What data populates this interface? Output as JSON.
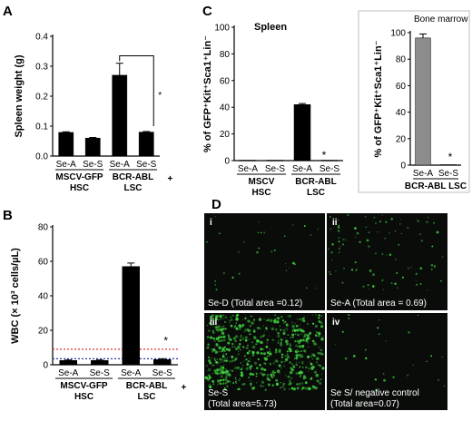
{
  "chart_data": [
    {
      "panel": "A",
      "type": "bar",
      "ylabel": "Spleen weight (g)",
      "ylim": [
        0,
        0.4
      ],
      "yticks": [
        "0.0",
        "0.1",
        "0.2",
        "0.3",
        "0.4"
      ],
      "categories": [
        "Se-A",
        "Se-S",
        "Se-A",
        "Se-S"
      ],
      "values": [
        0.079,
        0.06,
        0.27,
        0.08
      ],
      "errors": [
        0.002,
        0.002,
        0.04,
        0.002
      ],
      "groups": [
        {
          "line1": "MSCV-GFP",
          "line2": "HSC"
        },
        {
          "line1": "BCR-ABL",
          "sup": "+",
          "line2": "LSC"
        }
      ],
      "annotation": "*",
      "bar_color": "#000000"
    },
    {
      "panel": "B",
      "type": "bar",
      "ylabel": "WBC (× 10³ cells/µL)",
      "ylim": [
        0,
        80
      ],
      "yticks": [
        "0",
        "20",
        "40",
        "60",
        "80"
      ],
      "categories": [
        "Se-A",
        "Se-S",
        "Se-A",
        "Se-S"
      ],
      "values": [
        2.5,
        2.5,
        57,
        3
      ],
      "errors": [
        0.3,
        0.3,
        2,
        0.5
      ],
      "reference_lines": [
        {
          "value": 9,
          "color": "#e03030"
        },
        {
          "value": 3.5,
          "color": "#2a3aa0"
        }
      ],
      "groups": [
        {
          "line1": "MSCV-GFP",
          "line2": "HSC"
        },
        {
          "line1": "BCR-ABL",
          "sup": "+",
          "line2": "LSC"
        }
      ],
      "annotation": "*",
      "bar_color": "#000000"
    },
    {
      "panel": "C",
      "type": "bar",
      "title": "Spleen",
      "ylabel": "% of GFP⁺Kit⁺Sca1⁺Lin⁻",
      "ylim": [
        0,
        100
      ],
      "yticks": [
        "0",
        "20",
        "40",
        "60",
        "80",
        "100"
      ],
      "categories": [
        "Se-A",
        "Se-S",
        "Se-A",
        "Se-S"
      ],
      "values": [
        0.3,
        0.3,
        42,
        0.3
      ],
      "errors": [
        0,
        0,
        0.8,
        0
      ],
      "groups": [
        {
          "line1": "MSCV",
          "line2": "HSC"
        },
        {
          "line1": "BCR-ABL",
          "line2": "LSC"
        }
      ],
      "annotation": "*",
      "bar_color": "#000000"
    },
    {
      "panel": "C-right",
      "type": "bar",
      "title": "Bone marrow",
      "ylabel": "% of GFP⁺Kit⁺Sca1⁺Lin⁻",
      "ylim": [
        0,
        100
      ],
      "yticks": [
        "0",
        "20",
        "40",
        "60",
        "80",
        "100"
      ],
      "categories": [
        "Se-A",
        "Se-S"
      ],
      "values": [
        96,
        0.5
      ],
      "errors": [
        3,
        0
      ],
      "groups": [
        {
          "line1": "BCR-ABL LSC"
        }
      ],
      "annotation": "*",
      "bar_color": "#8c8c8c"
    }
  ],
  "panel_letters": [
    "A",
    "B",
    "C",
    "D"
  ],
  "micrographs": [
    {
      "roman": "i",
      "label_line1": "Se-D (Total area =0.12)",
      "label_line2": "",
      "density": 0.12
    },
    {
      "roman": "ii",
      "label_line1": "Se-A (Total area = 0.69)",
      "label_line2": "",
      "density": 0.69
    },
    {
      "roman": "iii",
      "label_line1": "Se-S",
      "label_line2": "(Total area=5.73)",
      "density": 5.73
    },
    {
      "roman": "iv",
      "label_line1": "Se S/ negative control",
      "label_line2": "(Total area=0.07)",
      "density": 0.07
    }
  ],
  "colors": {
    "bar": "#000000",
    "bar_gray": "#8c8c8c",
    "micro_bg": "#0a0c0a",
    "micro_dot": "#3fd33f"
  }
}
